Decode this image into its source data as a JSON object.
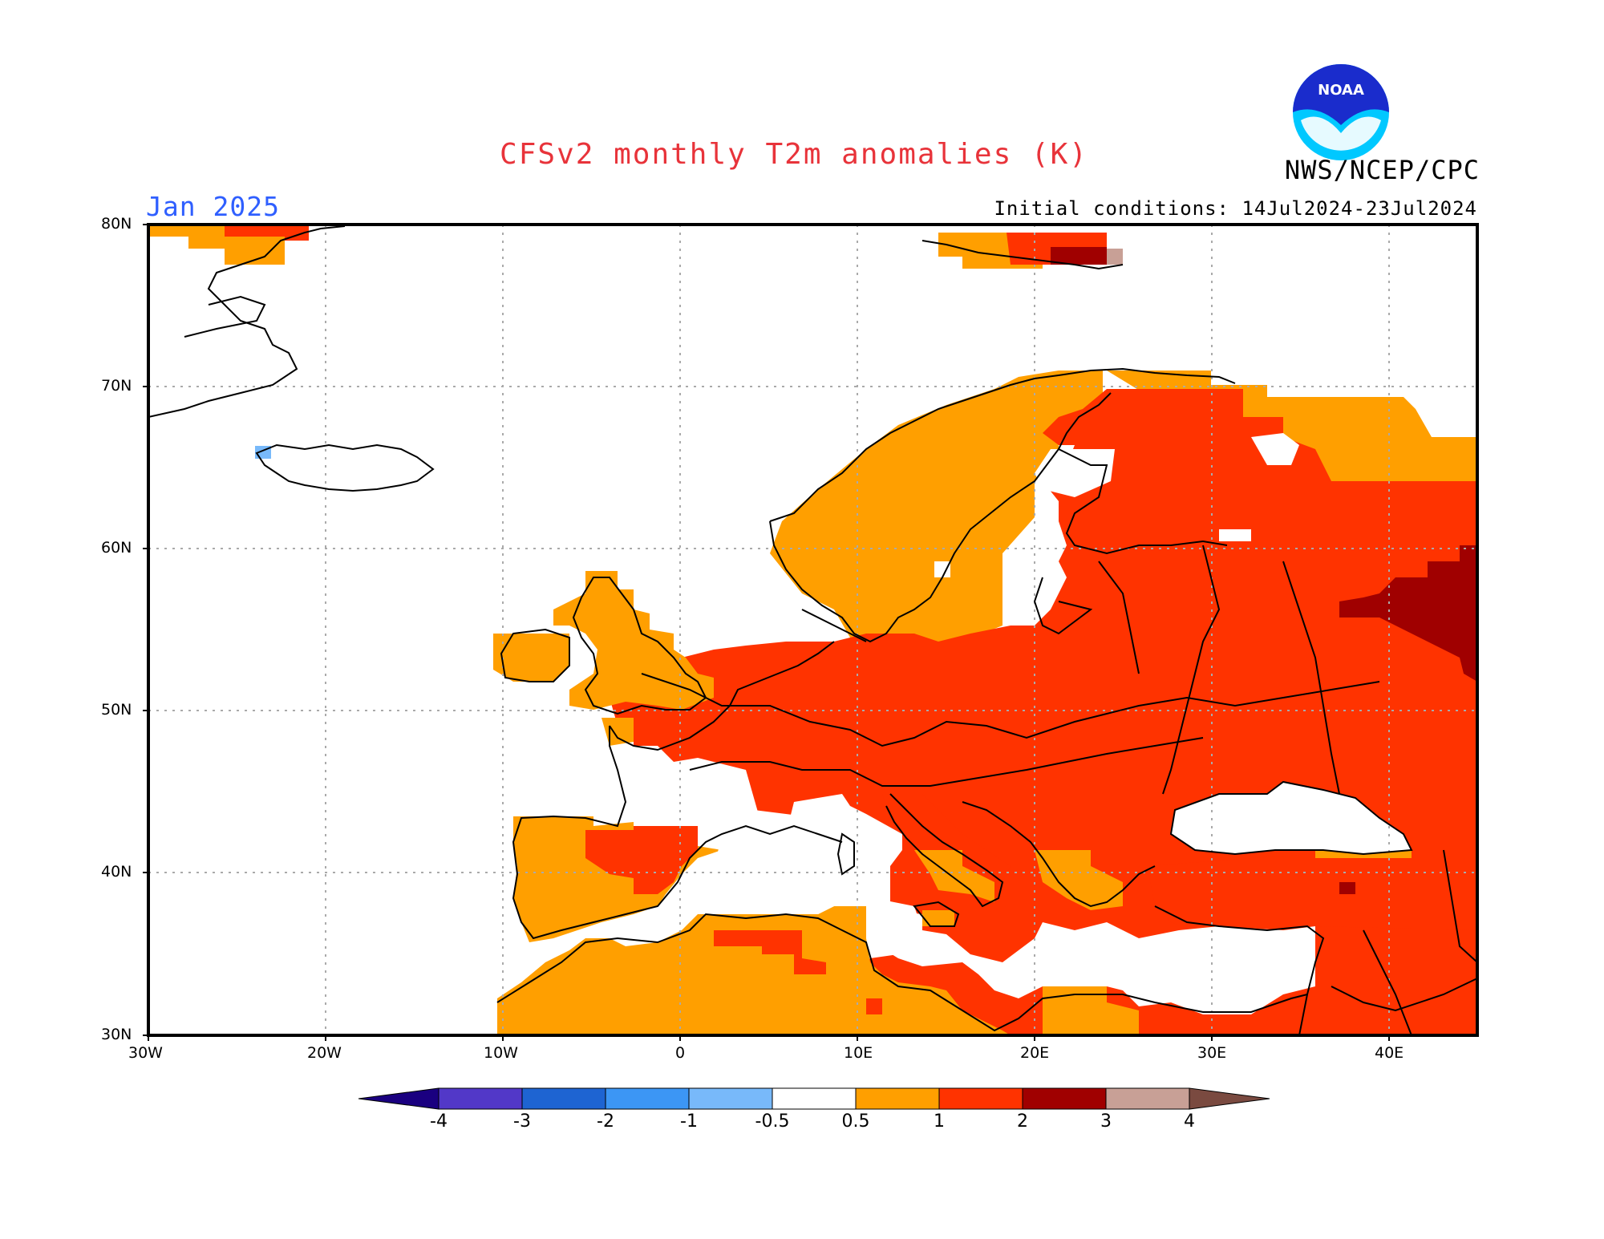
{
  "header": {
    "title": "CFSv2 monthly T2m anomalies (K)",
    "valid_month": "Jan 2025",
    "initial_conditions": "Initial conditions: 14Jul2024-23Jul2024",
    "agency": "NWS/NCEP/CPC",
    "logo_text": "NOAA"
  },
  "map": {
    "projection": "lat-lon",
    "lon_range": [
      -30,
      45
    ],
    "lat_range": [
      30,
      80
    ],
    "grid": true,
    "lat_ticks": [
      "80N",
      "70N",
      "60N",
      "50N",
      "40N",
      "30N"
    ],
    "lon_ticks": [
      "30W",
      "20W",
      "10W",
      "0",
      "10E",
      "20E",
      "30E",
      "40E"
    ]
  },
  "legend": {
    "labels": [
      "-4",
      "-3",
      "-2",
      "-1",
      "-0.5",
      "0.5",
      "1",
      "2",
      "3",
      "4"
    ],
    "colors": [
      "#1a0080",
      "#5238c8",
      "#1e64d2",
      "#3c96f5",
      "#78b9fa",
      "#ffffff",
      "#ff9f00",
      "#ff3300",
      "#a00000",
      "#c8a096",
      "#7a4a40"
    ]
  },
  "colors": {
    "anom_0_5_1": "#ff9f00",
    "anom_1_2": "#ff3300",
    "anom_2_3": "#a00000",
    "anom_3_4": "#c8a096",
    "anom_neg": "#78b9fa",
    "title": "#e8333a",
    "period": "#2f5fff"
  }
}
